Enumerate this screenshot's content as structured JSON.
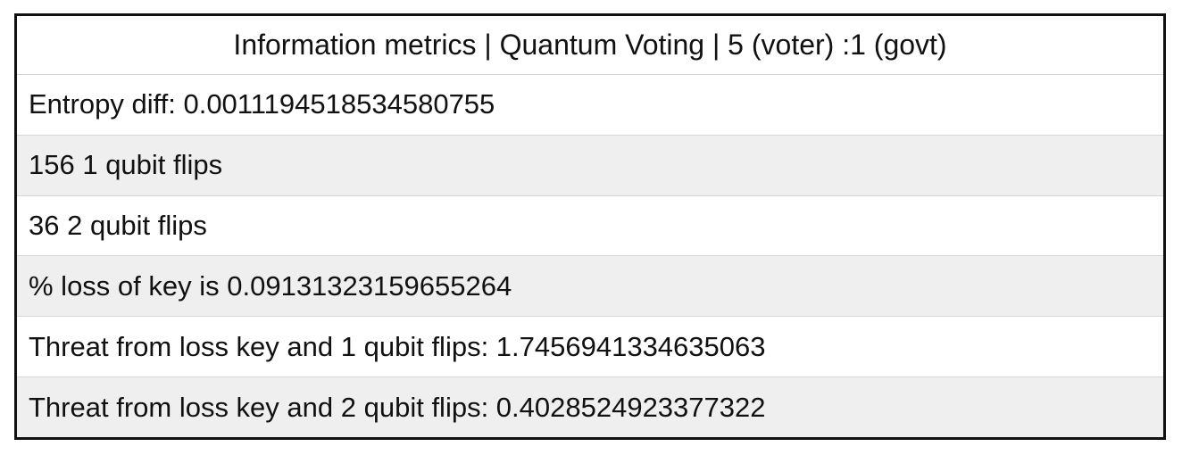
{
  "panel": {
    "title": "Information metrics | Quantum Voting | 5 (voter) :1 (govt)",
    "rows": [
      "Entropy diff: 0.0011194518534580755",
      "156 1 qubit flips",
      "36 2 qubit flips",
      "% loss of key is 0.09131323159655264",
      "Threat from loss key and 1 qubit flips: 1.7456941334635063",
      "Threat from loss key and 2 qubit flips: 0.4028524923377322"
    ]
  },
  "colors": {
    "border": "#111111",
    "row_alt_background": "#efefef",
    "row_background": "#ffffff",
    "divider": "#d6d6d6"
  }
}
